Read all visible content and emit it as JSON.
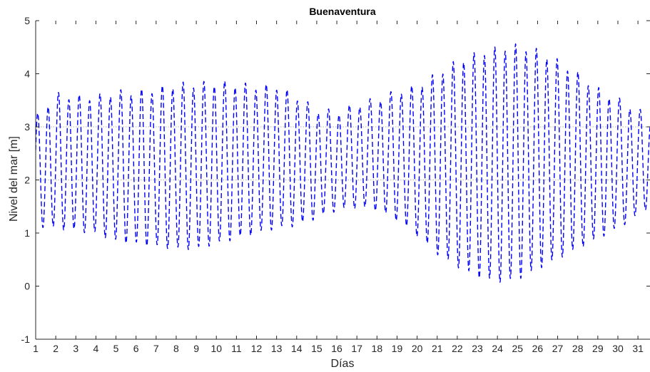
{
  "chart_data": {
    "type": "line",
    "title": "Buenaventura",
    "xlabel": "Días",
    "ylabel": "Nivel del mar [m]",
    "xlim": [
      1,
      31.6
    ],
    "ylim": [
      -1,
      5
    ],
    "xticks": [
      1,
      2,
      3,
      4,
      5,
      6,
      7,
      8,
      9,
      10,
      11,
      12,
      13,
      14,
      15,
      16,
      17,
      18,
      19,
      20,
      21,
      22,
      23,
      24,
      25,
      26,
      27,
      28,
      29,
      30,
      31
    ],
    "yticks": [
      -1,
      0,
      1,
      2,
      3,
      4,
      5
    ],
    "gridlines_y": [
      2,
      3
    ],
    "grid": "horizontal dotted at 2 and 3",
    "series_color": "#0000ff",
    "series": [
      {
        "values_description_note": "",
        "x": [
          1,
          2,
          3,
          4,
          5,
          6,
          7,
          8,
          9,
          10,
          11,
          12,
          13,
          14,
          15,
          16,
          17,
          18,
          19,
          20,
          21,
          22,
          23,
          24,
          25,
          26,
          27,
          28,
          29,
          30,
          31,
          31.6
        ],
        "high_tide": [
          3.2,
          3.65,
          3.6,
          3.6,
          3.7,
          3.7,
          3.75,
          3.85,
          3.85,
          3.88,
          3.85,
          3.8,
          3.8,
          3.6,
          3.35,
          3.3,
          3.45,
          3.55,
          3.7,
          3.8,
          4.05,
          4.3,
          4.45,
          4.55,
          4.6,
          4.5,
          4.3,
          4.05,
          3.75,
          3.55,
          3.35,
          3.15
        ],
        "low_tide": [
          1.1,
          1.05,
          1.0,
          0.95,
          0.8,
          0.75,
          0.7,
          0.65,
          0.65,
          0.75,
          0.85,
          0.95,
          1.05,
          1.1,
          1.25,
          1.4,
          1.45,
          1.4,
          1.2,
          0.9,
          0.55,
          0.3,
          0.1,
          0.0,
          0.05,
          0.25,
          0.45,
          0.65,
          0.85,
          1.05,
          1.3,
          1.5
        ]
      }
    ]
  }
}
